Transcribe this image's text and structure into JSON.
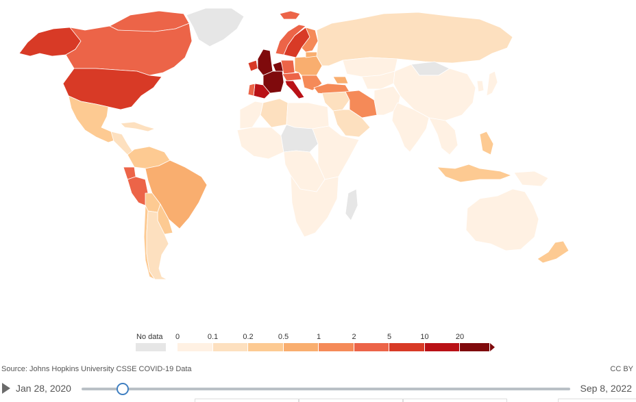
{
  "legend": {
    "nodata_label": "No data",
    "nodata_color": "#e6e6e6",
    "ticks": [
      "0",
      "0.1",
      "0.2",
      "0.5",
      "1",
      "2",
      "5",
      "10",
      "20"
    ],
    "bins": [
      {
        "from": "0",
        "to": "0.1",
        "color": "#fff1e3"
      },
      {
        "from": "0.1",
        "to": "0.2",
        "color": "#fde0bf"
      },
      {
        "from": "0.2",
        "to": "0.5",
        "color": "#fdca92"
      },
      {
        "from": "0.5",
        "to": "1",
        "color": "#f9ae6f"
      },
      {
        "from": "1",
        "to": "2",
        "color": "#f58a58"
      },
      {
        "from": "2",
        "to": "5",
        "color": "#ec6448"
      },
      {
        "from": "5",
        "to": "10",
        "color": "#d83a26"
      },
      {
        "from": "10",
        "to": "20",
        "color": "#b91116"
      },
      {
        "from": "20",
        "to": "",
        "color": "#7f0a0c"
      }
    ]
  },
  "source": "Source: Johns Hopkins University CSSE COVID-19 Data",
  "license": "CC BY",
  "timeline": {
    "start_date": "Jan 28, 2020",
    "end_date": "Sep 8, 2022",
    "position_fraction": 0.083
  },
  "colors": {
    "nodata": "#e6e6e6",
    "accent": "#3f7fc1"
  },
  "regions": [
    {
      "name": "alaska",
      "bin": 6
    },
    {
      "name": "canada",
      "bin": 5
    },
    {
      "name": "canadian-arctic",
      "bin": 5
    },
    {
      "name": "greenland",
      "bin": -1
    },
    {
      "name": "iceland",
      "bin": 5
    },
    {
      "name": "usa",
      "bin": 6
    },
    {
      "name": "mexico",
      "bin": 2
    },
    {
      "name": "central-america",
      "bin": 1
    },
    {
      "name": "caribbean",
      "bin": 1
    },
    {
      "name": "colombia-venezuela",
      "bin": 2
    },
    {
      "name": "ecuador",
      "bin": 5
    },
    {
      "name": "peru",
      "bin": 5
    },
    {
      "name": "brazil",
      "bin": 3
    },
    {
      "name": "bolivia",
      "bin": 2
    },
    {
      "name": "chile",
      "bin": 2
    },
    {
      "name": "argentina",
      "bin": 1
    },
    {
      "name": "uruguay-paraguay",
      "bin": 2
    },
    {
      "name": "norway",
      "bin": 5
    },
    {
      "name": "sweden",
      "bin": 6
    },
    {
      "name": "finland",
      "bin": 4
    },
    {
      "name": "uk",
      "bin": 8
    },
    {
      "name": "ireland",
      "bin": 6
    },
    {
      "name": "spain",
      "bin": 7
    },
    {
      "name": "portugal",
      "bin": 5
    },
    {
      "name": "france",
      "bin": 8
    },
    {
      "name": "belgium-netherlands",
      "bin": 8
    },
    {
      "name": "germany",
      "bin": 5
    },
    {
      "name": "italy",
      "bin": 7
    },
    {
      "name": "switzerland-austria",
      "bin": 5
    },
    {
      "name": "eastern-europe",
      "bin": 3
    },
    {
      "name": "balkans",
      "bin": 4
    },
    {
      "name": "baltics-belarus",
      "bin": 3
    },
    {
      "name": "turkey",
      "bin": 4
    },
    {
      "name": "russia",
      "bin": 1
    },
    {
      "name": "kazakhstan",
      "bin": 0
    },
    {
      "name": "mongolia",
      "bin": -1
    },
    {
      "name": "china",
      "bin": 0
    },
    {
      "name": "iran",
      "bin": 4
    },
    {
      "name": "caucasus",
      "bin": 3
    },
    {
      "name": "middle-east",
      "bin": 1
    },
    {
      "name": "arabia",
      "bin": 1
    },
    {
      "name": "central-asia",
      "bin": 0
    },
    {
      "name": "afghanistan-pakistan",
      "bin": 0
    },
    {
      "name": "india",
      "bin": 0
    },
    {
      "name": "southeast-asia",
      "bin": 0
    },
    {
      "name": "philippines",
      "bin": 2
    },
    {
      "name": "indonesia",
      "bin": 2
    },
    {
      "name": "new-guinea",
      "bin": 0
    },
    {
      "name": "japan",
      "bin": 0
    },
    {
      "name": "korea",
      "bin": 0
    },
    {
      "name": "north-africa-west",
      "bin": 0
    },
    {
      "name": "algeria",
      "bin": 1
    },
    {
      "name": "egypt-libya",
      "bin": 0
    },
    {
      "name": "west-africa",
      "bin": 0
    },
    {
      "name": "sahel",
      "bin": -1
    },
    {
      "name": "central-africa",
      "bin": 0
    },
    {
      "name": "east-africa",
      "bin": 0
    },
    {
      "name": "southern-africa",
      "bin": 0
    },
    {
      "name": "madagascar",
      "bin": -1
    },
    {
      "name": "australia",
      "bin": 0
    },
    {
      "name": "new-zealand",
      "bin": 2
    }
  ]
}
